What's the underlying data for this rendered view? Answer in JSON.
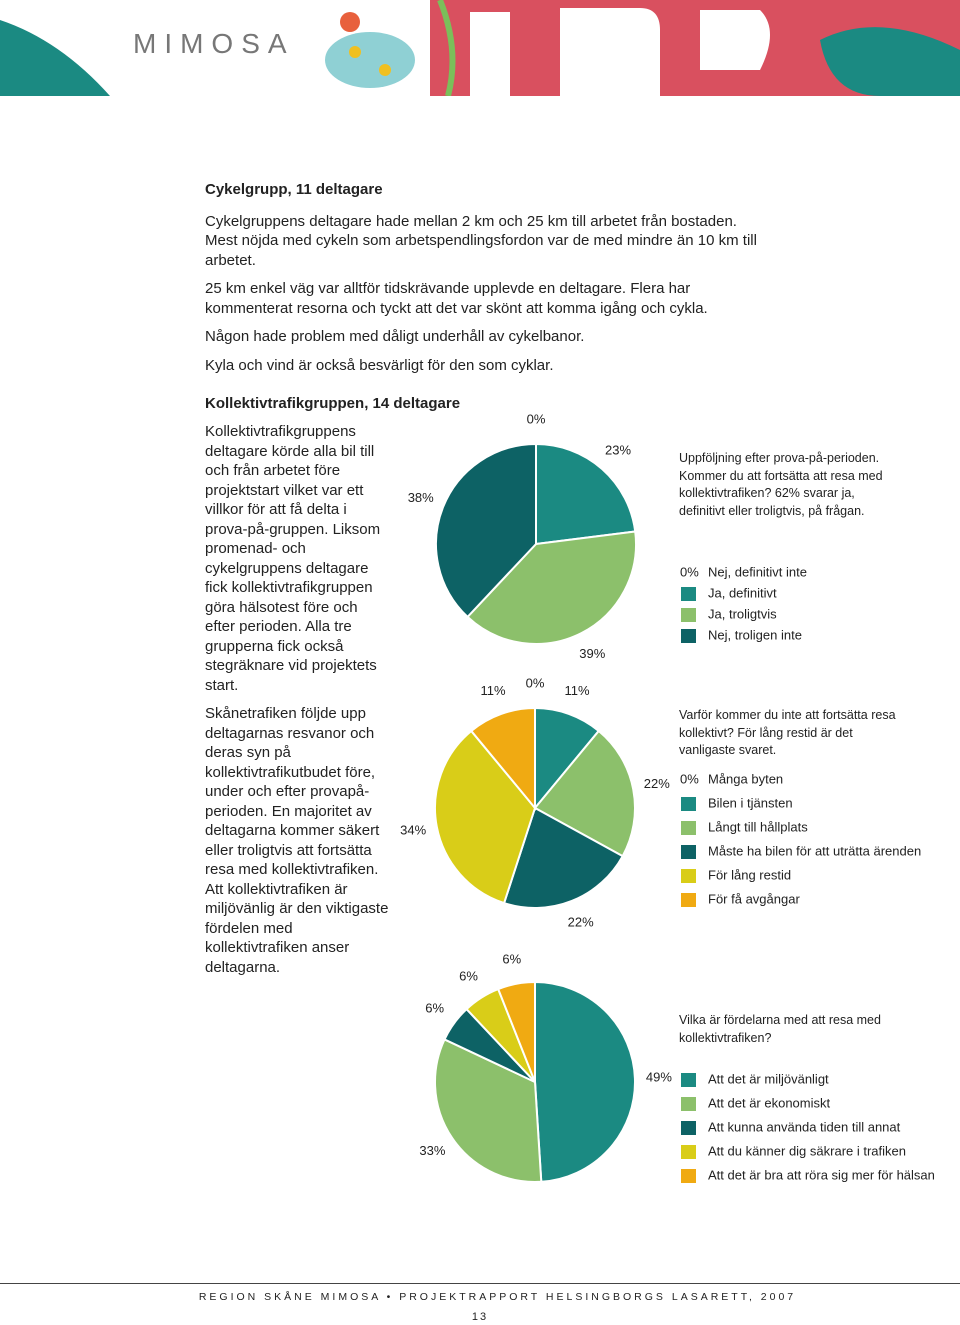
{
  "header": {
    "logo": "MIMOSA"
  },
  "section1": {
    "title": "Cykelgrupp, 11 deltagare",
    "paragraphs": [
      "Cykelgruppens deltagare hade mellan 2 km och 25 km till arbetet från bostaden. Mest nöjda med cykeln som arbetspendlingsfordon var de med  mindre än 10 km till arbetet.",
      "25 km enkel väg var alltför tidskrävande upplevde en deltagare. Flera har kommenterat resorna och tyckt att det var skönt att komma igång och cykla.",
      "Någon hade problem med dåligt underhåll av cykelbanor.",
      "Kyla och vind är också besvärligt för den som cyklar."
    ]
  },
  "section2": {
    "title": "Kollektivtrafikgruppen, 14 deltagare",
    "paragraphs": [
      "Kollektivtrafikgruppens deltagare körde alla bil till och från arbetet före projektstart vilket var ett villkor för att få delta i prova-på-gruppen. Liksom promenad- och cykelgruppens deltagare fick kollektivtrafikgruppen göra hälsotest före och efter perioden. Alla tre grupperna fick också stegräknare vid projektets start.",
      "Skånetrafiken följde upp deltagarnas resvanor och deras syn på kollektivtrafikutbudet före, under och efter provapå-perioden. En majoritet av deltagarna kommer säkert eller troligtvis att fortsätta resa med kollektivtrafiken. Att kollektivtrafiken är miljövänlig är den viktigaste fördelen med kollektivtrafiken anser deltagarna."
    ]
  },
  "chart_data": [
    {
      "type": "pie",
      "caption": "Uppföljning efter prova-på-perioden. Kommer du att fortsätta att resa med kollektivtrafiken? 62% svarar ja, definitivt eller troligtvis, på frågan.",
      "categories": [
        "Nej, definitivt inte",
        "Ja, definitivt",
        "Ja, troligtvis",
        "Nej, troligen inte"
      ],
      "values": [
        0,
        23,
        39,
        38
      ],
      "value_labels": [
        "0%",
        "23%",
        "39%",
        "38%"
      ],
      "colors": [
        "#ffffff",
        "#1b8a82",
        "#8cc06b",
        "#0d6265"
      ]
    },
    {
      "type": "pie",
      "caption": "Varför kommer du inte att  fortsätta resa kollektivt? För lång restid är det vanligaste svaret.",
      "categories": [
        "Många byten",
        "Bilen i tjänsten",
        "Långt till hållplats",
        "Måste ha bilen för att uträtta ärenden",
        "För lång restid",
        "För få avgångar"
      ],
      "values": [
        0,
        11,
        22,
        22,
        34,
        11
      ],
      "value_labels": [
        "0%",
        "11%",
        "22%",
        "22%",
        "34%",
        "11%"
      ],
      "colors": [
        "#ffffff",
        "#1b8a82",
        "#8cc06b",
        "#0d6265",
        "#d9cd18",
        "#f0aa12"
      ]
    },
    {
      "type": "pie",
      "caption": "Vilka är fördelarna med att resa med kollektivtrafiken?",
      "categories": [
        "Att det är miljövänligt",
        "Att det är ekonomiskt",
        "Att kunna använda tiden till annat",
        "Att du känner dig säkrare i trafiken",
        "Att det är bra att röra sig mer för hälsan"
      ],
      "values": [
        49,
        33,
        6,
        6,
        6
      ],
      "value_labels": [
        "49%",
        "33%",
        "6%",
        "6%",
        "6%"
      ],
      "colors": [
        "#1b8a82",
        "#8cc06b",
        "#0d6265",
        "#d9cd18",
        "#f0aa12"
      ]
    }
  ],
  "footer": {
    "text": "REGION SKÅNE MIMOSA • PROJEKTRAPPORT HELSINGBORGS LASARETT, 2007",
    "page": "13"
  }
}
